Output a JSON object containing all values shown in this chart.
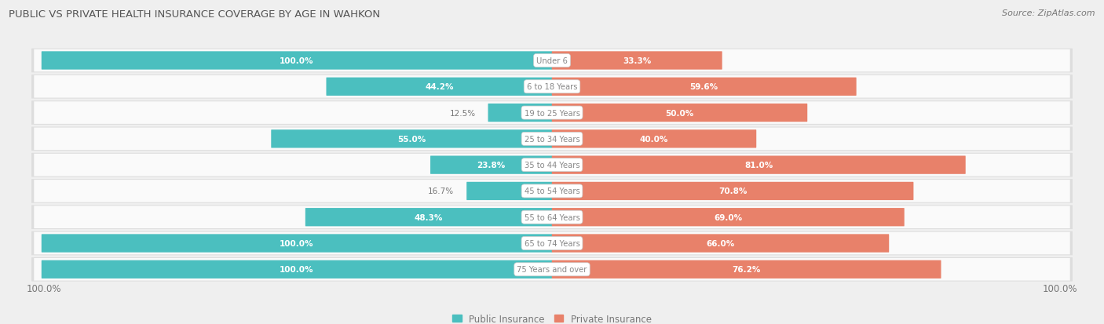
{
  "title": "PUBLIC VS PRIVATE HEALTH INSURANCE COVERAGE BY AGE IN WAHKON",
  "source": "Source: ZipAtlas.com",
  "categories": [
    "Under 6",
    "6 to 18 Years",
    "19 to 25 Years",
    "25 to 34 Years",
    "35 to 44 Years",
    "45 to 54 Years",
    "55 to 64 Years",
    "65 to 74 Years",
    "75 Years and over"
  ],
  "public_values": [
    100.0,
    44.2,
    12.5,
    55.0,
    23.8,
    16.7,
    48.3,
    100.0,
    100.0
  ],
  "private_values": [
    33.3,
    59.6,
    50.0,
    40.0,
    81.0,
    70.8,
    69.0,
    66.0,
    76.2
  ],
  "public_color": "#4BBFBF",
  "private_color": "#E8816A",
  "bg_color": "#EFEFEF",
  "row_bg_color": "#FAFAFA",
  "row_border_color": "#DDDDDD",
  "title_color": "#555555",
  "label_color": "#777777",
  "value_white": "#FFFFFF",
  "value_dark": "#888888",
  "center_label_color": "#888888",
  "max_value": 100.0,
  "figsize": [
    14.06,
    4.14
  ],
  "dpi": 100
}
